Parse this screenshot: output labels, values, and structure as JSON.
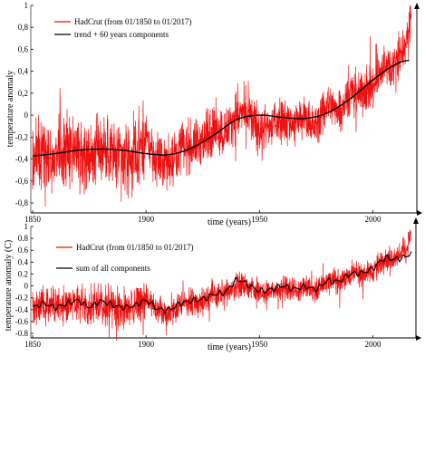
{
  "chart_data": [
    {
      "type": "line",
      "xlabel": "time (years)",
      "ylabel": "temperature anomaly",
      "xlim": [
        1850,
        2017
      ],
      "ylim": [
        -1,
        1
      ],
      "xticks": [
        1850,
        1900,
        1950,
        2000
      ],
      "xtick_labels": [
        "1850",
        "1900",
        "1950",
        "2000"
      ],
      "yticks": [
        -0.8,
        -0.6,
        -0.4,
        -0.2,
        0,
        0.2,
        0.4,
        0.6,
        0.8,
        1
      ],
      "ytick_labels": [
        "-0,8",
        "-0,6",
        "-0,4",
        "-0,2",
        "0",
        "0,2",
        "0,4",
        "0,6",
        "0,8",
        "1"
      ],
      "grid": false,
      "legend_position": "top-left",
      "series": [
        {
          "name": "HadCrut (from 01/1850 to 01/2017)",
          "color": "#ee1111",
          "style": "monthly",
          "x": [
            1850,
            1855,
            1860,
            1865,
            1870,
            1875,
            1880,
            1885,
            1890,
            1895,
            1900,
            1905,
            1910,
            1915,
            1920,
            1925,
            1930,
            1935,
            1940,
            1945,
            1950,
            1955,
            1960,
            1965,
            1970,
            1975,
            1980,
            1985,
            1990,
            1995,
            2000,
            2005,
            2010,
            2015,
            2017
          ],
          "values": [
            -0.38,
            -0.32,
            -0.35,
            -0.33,
            -0.28,
            -0.38,
            -0.27,
            -0.36,
            -0.4,
            -0.38,
            -0.22,
            -0.42,
            -0.44,
            -0.3,
            -0.28,
            -0.24,
            -0.14,
            -0.15,
            0.02,
            0.0,
            -0.15,
            -0.1,
            -0.02,
            -0.07,
            -0.03,
            -0.1,
            0.1,
            0.06,
            0.2,
            0.2,
            0.25,
            0.45,
            0.48,
            0.65,
            0.92
          ]
        },
        {
          "name": "trend + 60 years components",
          "color": "#000000",
          "style": "smooth",
          "x": [
            1850,
            1860,
            1870,
            1880,
            1890,
            1900,
            1910,
            1920,
            1930,
            1940,
            1950,
            1960,
            1970,
            1980,
            1990,
            2000,
            2010,
            2016
          ],
          "values": [
            -0.37,
            -0.35,
            -0.32,
            -0.31,
            -0.32,
            -0.35,
            -0.36,
            -0.3,
            -0.18,
            -0.04,
            0.0,
            -0.02,
            -0.03,
            0.02,
            0.15,
            0.32,
            0.46,
            0.5
          ]
        }
      ]
    },
    {
      "type": "line",
      "xlabel": "time (years)",
      "ylabel": "temperature anomaly (C)",
      "xlim": [
        1850,
        2017
      ],
      "ylim": [
        -1,
        1
      ],
      "xticks": [
        1850,
        1900,
        1950,
        2000
      ],
      "xtick_labels": [
        "1850",
        "1900",
        "1950",
        "2000"
      ],
      "yticks": [
        -0.8,
        -0.6,
        -0.4,
        -0.2,
        0,
        0.2,
        0.4,
        0.6,
        0.8,
        1
      ],
      "ytick_labels": [
        "-0.8",
        "-0.6",
        "-0.4",
        "-0.2",
        "0",
        "0.2",
        "0.4",
        "0.6",
        "0.8",
        "1"
      ],
      "grid": false,
      "legend_position": "top-left",
      "series": [
        {
          "name": "HadCrut (from 01/1850 to 01/2017)",
          "color": "#ee1111",
          "style": "monthly",
          "x": [
            1850,
            1855,
            1860,
            1865,
            1870,
            1875,
            1880,
            1885,
            1890,
            1895,
            1900,
            1905,
            1910,
            1915,
            1920,
            1925,
            1930,
            1935,
            1940,
            1945,
            1950,
            1955,
            1960,
            1965,
            1970,
            1975,
            1980,
            1985,
            1990,
            1995,
            2000,
            2005,
            2010,
            2015,
            2017
          ],
          "values": [
            -0.38,
            -0.32,
            -0.35,
            -0.33,
            -0.28,
            -0.38,
            -0.27,
            -0.36,
            -0.4,
            -0.38,
            -0.22,
            -0.42,
            -0.44,
            -0.3,
            -0.28,
            -0.24,
            -0.14,
            -0.15,
            0.02,
            0.0,
            -0.15,
            -0.1,
            -0.02,
            -0.07,
            -0.03,
            -0.1,
            0.1,
            0.06,
            0.2,
            0.2,
            0.25,
            0.45,
            0.48,
            0.65,
            0.92
          ]
        },
        {
          "name": "sum of all components",
          "color": "#000000",
          "style": "wavy",
          "x": [
            1850,
            1855,
            1860,
            1865,
            1870,
            1875,
            1880,
            1885,
            1890,
            1895,
            1900,
            1905,
            1910,
            1915,
            1920,
            1925,
            1930,
            1935,
            1940,
            1945,
            1950,
            1955,
            1960,
            1965,
            1970,
            1975,
            1980,
            1985,
            1990,
            1995,
            2000,
            2005,
            2010,
            2015,
            2017
          ],
          "values": [
            -0.36,
            -0.3,
            -0.36,
            -0.3,
            -0.25,
            -0.35,
            -0.26,
            -0.32,
            -0.36,
            -0.33,
            -0.25,
            -0.38,
            -0.4,
            -0.3,
            -0.25,
            -0.22,
            -0.14,
            -0.1,
            0.1,
            0.02,
            -0.08,
            -0.06,
            0.0,
            -0.05,
            -0.01,
            -0.05,
            0.08,
            0.08,
            0.2,
            0.22,
            0.3,
            0.46,
            0.45,
            0.5,
            0.56
          ]
        }
      ]
    }
  ]
}
